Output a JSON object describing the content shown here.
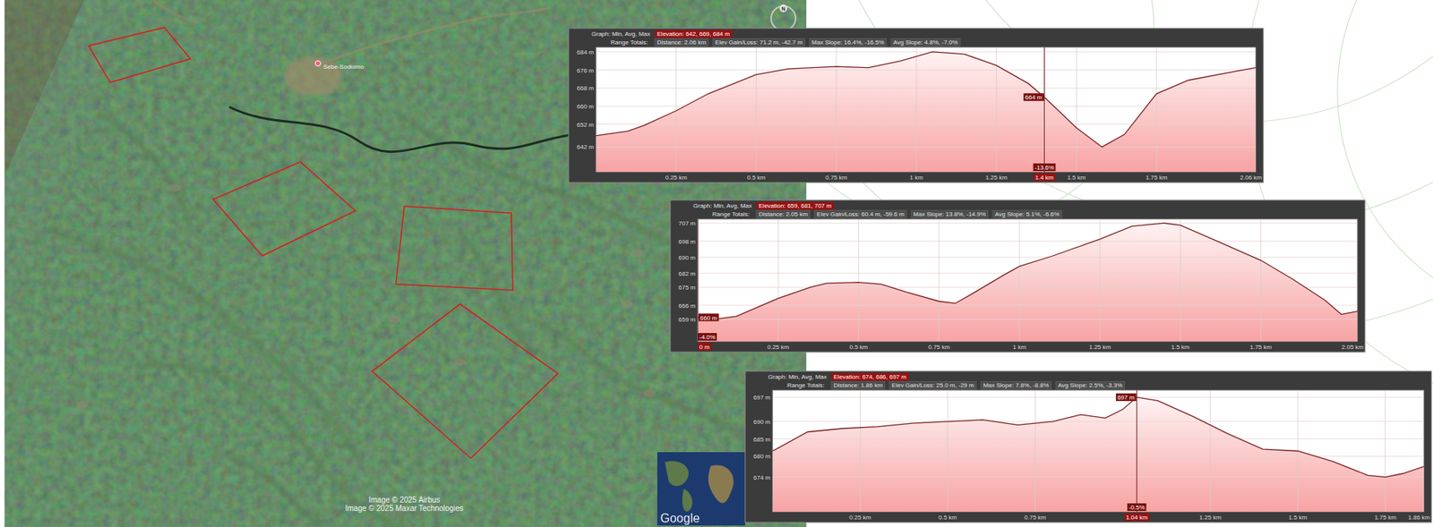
{
  "map": {
    "place_label": "Sebe-Sodiomo",
    "credits": [
      "Image © 2025 Airbus",
      "Image © 2025 Maxar Technologies"
    ],
    "compass": "N",
    "logo": "Google"
  },
  "chart_data": [
    {
      "type": "area",
      "title": "Graph: Min, Avg, Max",
      "subtitle": "Elevation: 642, 669, 684 m",
      "annotations": [
        "Range Totals:",
        "Distance: 2.06 km",
        "Elev Gain/Loss: 71.2 m, -42.7 m",
        "Max Slope: 16.4%, -16.5%",
        "Avg Slope: 4.8%, -7.0%"
      ],
      "color": "#7a1f1f",
      "grid": true,
      "x": [
        0,
        0.1,
        0.15,
        0.25,
        0.35,
        0.5,
        0.6,
        0.75,
        0.85,
        0.95,
        1.05,
        1.15,
        1.25,
        1.35,
        1.4,
        1.5,
        1.58,
        1.65,
        1.75,
        1.85,
        2.0,
        2.06
      ],
      "values": [
        647,
        649,
        651.5,
        658,
        665.5,
        674,
        676.5,
        677.5,
        677,
        680,
        684,
        683,
        678,
        670,
        664,
        650.5,
        642,
        647.5,
        665.5,
        671.5,
        675.5,
        677
      ],
      "xlim": [
        0,
        2.06
      ],
      "xticks": [
        {
          "value": 0.25,
          "label": "0.25 km"
        },
        {
          "value": 0.5,
          "label": "0.5 km"
        },
        {
          "value": 0.75,
          "label": "0.75 km"
        },
        {
          "value": 1,
          "label": "1 km"
        },
        {
          "value": 1.25,
          "label": "1.25 km"
        },
        {
          "value": 1.5,
          "label": "1.5 km"
        },
        {
          "value": 1.75,
          "label": "1.75 km"
        },
        {
          "value": 2.06,
          "label": "2.06 km"
        }
      ],
      "ylim": [
        631,
        686
      ],
      "yticks": [
        {
          "value": 684,
          "label": "684 m"
        },
        {
          "value": 676,
          "label": "676 m"
        },
        {
          "value": 668,
          "label": "668 m"
        },
        {
          "value": 660,
          "label": "660 m"
        },
        {
          "value": 652,
          "label": "652 m"
        },
        {
          "value": 642,
          "label": "642 m"
        }
      ],
      "cursor": {
        "x": 1.4,
        "y": 664,
        "label_y": "664 m",
        "label_slope": "-13.6%",
        "label_x": "1.4 km"
      }
    },
    {
      "type": "area",
      "title": "Graph: Min, Avg, Max",
      "subtitle": "Elevation: 659, 681, 707 m",
      "annotations": [
        "Range Totals:",
        "Distance: 2.05 km",
        "Elev Gain/Loss: 60.4 m, -59.6 m",
        "Max Slope: 13.8%, -14.9%",
        "Avg Slope: 5.1%, -6.6%"
      ],
      "color": "#7a1f1f",
      "grid": true,
      "x": [
        0,
        0.05,
        0.12,
        0.25,
        0.35,
        0.4,
        0.5,
        0.57,
        0.65,
        0.75,
        0.8,
        0.85,
        0.95,
        1.0,
        1.1,
        1.25,
        1.35,
        1.45,
        1.5,
        1.6,
        1.75,
        1.85,
        1.95,
        2.0,
        2.05
      ],
      "values": [
        660,
        659,
        660.5,
        669.5,
        675,
        677,
        677.5,
        676.5,
        672.5,
        668,
        667,
        671.5,
        681,
        685.5,
        690.5,
        699,
        705.5,
        707,
        706,
        699,
        688.5,
        679,
        668.5,
        661.5,
        663
      ],
      "xlim": [
        0,
        2.05
      ],
      "xticks": [
        {
          "value": 0.25,
          "label": "0.25 km"
        },
        {
          "value": 0.5,
          "label": "0.5 km"
        },
        {
          "value": 0.75,
          "label": "0.75 km"
        },
        {
          "value": 1,
          "label": "1 km"
        },
        {
          "value": 1.25,
          "label": "1.25 km"
        },
        {
          "value": 1.5,
          "label": "1.5 km"
        },
        {
          "value": 1.75,
          "label": "1.75 km"
        },
        {
          "value": 2.05,
          "label": "2.05 km"
        }
      ],
      "ylim": [
        648,
        709
      ],
      "yticks": [
        {
          "value": 707,
          "label": "707 m"
        },
        {
          "value": 698,
          "label": "698 m"
        },
        {
          "value": 690,
          "label": "690 m"
        },
        {
          "value": 682,
          "label": "682 m"
        },
        {
          "value": 675,
          "label": "675 m"
        },
        {
          "value": 666,
          "label": "666 m"
        },
        {
          "value": 659,
          "label": "659 m"
        }
      ],
      "cursor": {
        "x": 0,
        "y": 660,
        "label_y": "660 m",
        "label_slope": "-4.0%",
        "label_x": "0 m"
      }
    },
    {
      "type": "area",
      "title": "Graph: Min, Avg, Max",
      "subtitle": "Elevation: 674, 686, 697 m",
      "annotations": [
        "Range Totals:",
        "Distance: 1.86 km",
        "Elev Gain/Loss: 25.0 m, -29 m",
        "Max Slope: 7.8%, -8.8%",
        "Avg Slope: 2.5%, -3.3%"
      ],
      "color": "#7a1f1f",
      "grid": true,
      "x": [
        0,
        0.1,
        0.2,
        0.3,
        0.4,
        0.5,
        0.6,
        0.7,
        0.8,
        0.88,
        0.95,
        1.0,
        1.04,
        1.1,
        1.2,
        1.3,
        1.4,
        1.5,
        1.6,
        1.7,
        1.75,
        1.8,
        1.86
      ],
      "values": [
        681.5,
        687,
        688,
        688.5,
        689.5,
        690,
        690.5,
        689,
        690,
        692,
        691,
        693.5,
        697,
        696,
        691.5,
        686.5,
        682,
        681.5,
        678.5,
        674.5,
        674,
        675,
        677
      ],
      "xlim": [
        0,
        1.86
      ],
      "xticks": [
        {
          "value": 0.25,
          "label": "0.25 km"
        },
        {
          "value": 0.5,
          "label": "0.5 km"
        },
        {
          "value": 0.75,
          "label": "0.75 km"
        },
        {
          "value": 1.25,
          "label": "1.25 km"
        },
        {
          "value": 1.5,
          "label": "1.5 km"
        },
        {
          "value": 1.75,
          "label": "1.75 km"
        },
        {
          "value": 1.86,
          "label": "1.86 km"
        }
      ],
      "ylim": [
        664,
        699
      ],
      "yticks": [
        {
          "value": 697,
          "label": "697 m"
        },
        {
          "value": 690,
          "label": "690 m"
        },
        {
          "value": 685,
          "label": "685 m"
        },
        {
          "value": 680,
          "label": "680 m"
        },
        {
          "value": 674,
          "label": "674 m"
        }
      ],
      "cursor": {
        "x": 1.04,
        "y": 697,
        "label_y": "697 m",
        "label_slope": "-0.5%",
        "label_x": "1.04 km"
      }
    }
  ]
}
